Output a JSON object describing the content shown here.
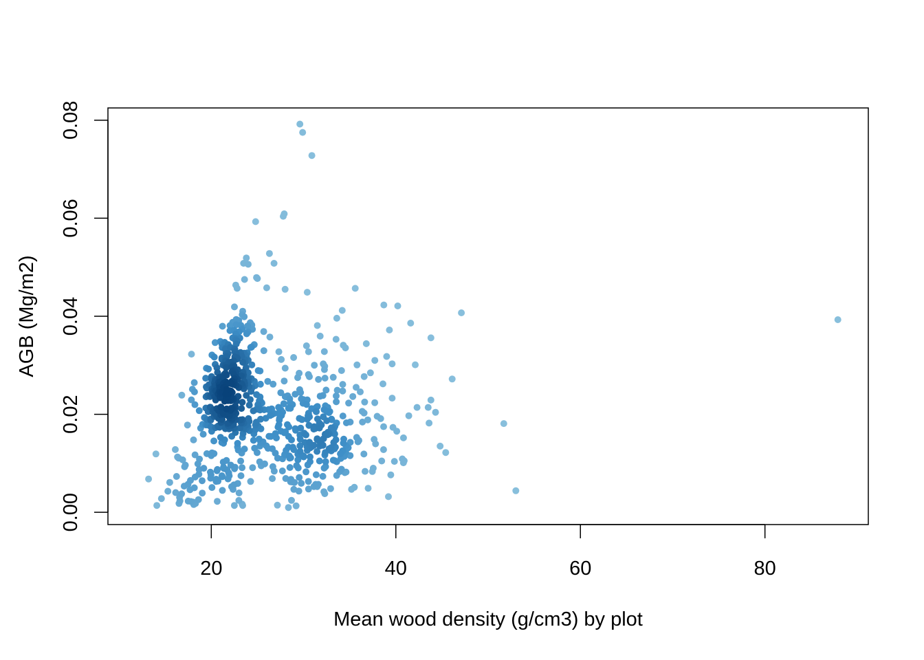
{
  "chart_data": {
    "type": "scatter",
    "title": "",
    "xlabel": "Mean wood density (g/cm3) by plot",
    "ylabel": "AGB (Mg/m2)",
    "xlim": [
      8.8,
      91.2
    ],
    "ylim": [
      -0.0025,
      0.0825
    ],
    "x_ticks": [
      20,
      40,
      60,
      80
    ],
    "y_ticks": [
      0.0,
      0.02,
      0.04,
      0.06,
      0.08
    ],
    "x_tick_labels": [
      "20",
      "40",
      "60",
      "80"
    ],
    "y_tick_labels": [
      "0.00",
      "0.02",
      "0.04",
      "0.06",
      "0.08"
    ],
    "grid": false,
    "legend": "none",
    "colors": {
      "low_density": "#8ec3de",
      "mid_density": "#3d8ec7",
      "high_density": "#08427a"
    },
    "explicit_points": [
      [
        29.6,
        0.0792
      ],
      [
        29.9,
        0.0775
      ],
      [
        30.9,
        0.0728
      ],
      [
        27.9,
        0.0609
      ],
      [
        27.8,
        0.0604
      ],
      [
        24.8,
        0.0593
      ],
      [
        26.3,
        0.0528
      ],
      [
        23.8,
        0.0519
      ],
      [
        23.5,
        0.0508
      ],
      [
        26.8,
        0.0508
      ],
      [
        24.0,
        0.0506
      ],
      [
        24.9,
        0.0479
      ],
      [
        25.0,
        0.0477
      ],
      [
        23.6,
        0.0475
      ],
      [
        35.6,
        0.0457
      ],
      [
        28.0,
        0.0455
      ],
      [
        26.0,
        0.0458
      ],
      [
        30.4,
        0.0449
      ],
      [
        40.2,
        0.0421
      ],
      [
        38.7,
        0.0423
      ],
      [
        47.1,
        0.0407
      ],
      [
        33.6,
        0.0396
      ],
      [
        39.3,
        0.0372
      ],
      [
        41.6,
        0.0386
      ],
      [
        43.8,
        0.0356
      ],
      [
        34.3,
        0.0341
      ],
      [
        36.8,
        0.0344
      ],
      [
        39.0,
        0.0318
      ],
      [
        39.6,
        0.0303
      ],
      [
        42.1,
        0.0301
      ],
      [
        46.1,
        0.0272
      ],
      [
        38.6,
        0.0262
      ],
      [
        39.6,
        0.0233
      ],
      [
        41.4,
        0.0197
      ],
      [
        42.3,
        0.0214
      ],
      [
        43.5,
        0.0214
      ],
      [
        43.8,
        0.0229
      ],
      [
        44.3,
        0.0204
      ],
      [
        43.6,
        0.0182
      ],
      [
        51.7,
        0.0181
      ],
      [
        44.8,
        0.0135
      ],
      [
        45.4,
        0.0122
      ],
      [
        40.7,
        0.0109
      ],
      [
        40.9,
        0.0105
      ],
      [
        39.2,
        0.0032
      ],
      [
        53.0,
        0.0044
      ],
      [
        87.9,
        0.0393
      ],
      [
        13.2,
        0.0068
      ],
      [
        14.0,
        0.0119
      ],
      [
        14.1,
        0.0014
      ],
      [
        14.6,
        0.0028
      ],
      [
        15.3,
        0.0043
      ],
      [
        15.5,
        0.0061
      ],
      [
        16.1,
        0.0128
      ],
      [
        16.5,
        0.0018
      ],
      [
        16.6,
        0.0023
      ],
      [
        16.8,
        0.0239
      ],
      [
        17.8,
        0.0022
      ],
      [
        18.1,
        0.0016
      ],
      [
        16.9,
        0.0107
      ],
      [
        22.5,
        0.0014
      ],
      [
        23.4,
        0.0014
      ],
      [
        35.2,
        0.0047
      ],
      [
        32.2,
        0.0042
      ],
      [
        32.3,
        0.0038
      ],
      [
        31.6,
        0.0057
      ],
      [
        35.5,
        0.0051
      ],
      [
        37.0,
        0.0049
      ]
    ],
    "clusters": [
      {
        "cx": 21.0,
        "cy": 0.0235,
        "sx": 1.3,
        "sy": 0.0045,
        "n": 140
      },
      {
        "cx": 22.8,
        "cy": 0.0315,
        "sx": 1.1,
        "sy": 0.0055,
        "n": 110
      },
      {
        "cx": 24.8,
        "cy": 0.021,
        "sx": 2.2,
        "sy": 0.006,
        "n": 80
      },
      {
        "cx": 20.0,
        "cy": 0.008,
        "sx": 2.4,
        "sy": 0.0035,
        "n": 70
      },
      {
        "cx": 28.0,
        "cy": 0.014,
        "sx": 3.0,
        "sy": 0.007,
        "n": 90
      },
      {
        "cx": 32.0,
        "cy": 0.0145,
        "sx": 2.2,
        "sy": 0.0045,
        "n": 100
      },
      {
        "cx": 35.5,
        "cy": 0.0195,
        "sx": 2.5,
        "sy": 0.006,
        "n": 50
      },
      {
        "cx": 30.0,
        "cy": 0.026,
        "sx": 3.0,
        "sy": 0.006,
        "n": 40
      }
    ]
  }
}
